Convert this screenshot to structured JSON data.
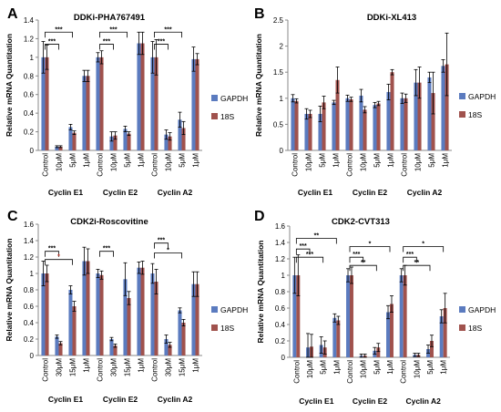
{
  "colors": {
    "gapdh": "#5b7bbf",
    "s18": "#a0524d",
    "axis": "#888888",
    "err": "#000000",
    "redstar": "#c0392b"
  },
  "chart_data": [
    {
      "letter": "A",
      "type": "bar",
      "title": "DDKi-PHA767491",
      "ylabel": "Relative mRNA Quantitation",
      "ylim": [
        0,
        1.4
      ],
      "yticks": [
        "0",
        "0.2",
        "0.4",
        "0.6",
        "0.8",
        "1",
        "1.2",
        "1.4"
      ],
      "categories": [
        "Control",
        "10μM",
        "5μM",
        "1μM",
        "Control",
        "10μM",
        "5μM",
        "1μM",
        "Control",
        "10μM",
        "5μM",
        "1μM"
      ],
      "groups": [
        "Cyclin E1",
        "Cyclin E2",
        "Cyclin A2"
      ],
      "series": [
        {
          "name": "GAPDH",
          "values": [
            1.0,
            0.04,
            0.25,
            0.8,
            1.0,
            0.15,
            0.23,
            1.15,
            1.0,
            0.17,
            0.33,
            0.98
          ],
          "errors": [
            0.17,
            0.01,
            0.03,
            0.06,
            0.05,
            0.05,
            0.03,
            0.12,
            0.17,
            0.05,
            0.08,
            0.13
          ]
        },
        {
          "name": "18S",
          "values": [
            1.0,
            0.04,
            0.19,
            0.8,
            1.0,
            0.16,
            0.18,
            1.15,
            1.0,
            0.15,
            0.24,
            0.98
          ],
          "errors": [
            0.13,
            0.01,
            0.02,
            0.06,
            0.07,
            0.04,
            0.02,
            0.12,
            0.19,
            0.04,
            0.07,
            0.06
          ]
        }
      ],
      "annotations": [
        {
          "text": "***",
          "from": 0,
          "to": 1,
          "level": 1.14
        },
        {
          "text": "***",
          "from": 0,
          "to": 2,
          "level": 1.27
        },
        {
          "text": "***",
          "from": 4,
          "to": 5,
          "level": 1.14
        },
        {
          "text": "***",
          "from": 4,
          "to": 6,
          "level": 1.27
        },
        {
          "text": "***",
          "from": 8,
          "to": 9,
          "level": 1.14
        },
        {
          "text": "***",
          "from": 8,
          "to": 10,
          "level": 1.27
        }
      ]
    },
    {
      "letter": "B",
      "type": "bar",
      "title": "DDKi-XL413",
      "ylabel": "Relative mRNA Quantitation",
      "ylim": [
        0,
        2.5
      ],
      "yticks": [
        "0",
        "0.5",
        "1",
        "1.5",
        "2",
        "2.5"
      ],
      "categories": [
        "Control",
        "10μM",
        "5μM",
        "1μM",
        "Control",
        "10μM",
        "5μM",
        "1μM",
        "Control",
        "10μM",
        "5μM",
        "1μM"
      ],
      "groups": [
        "Cyclin E1",
        "Cyclin E2",
        "Cyclin A2"
      ],
      "series": [
        {
          "name": "GAPDH",
          "values": [
            1.0,
            0.7,
            0.7,
            0.92,
            1.0,
            1.05,
            0.87,
            1.12,
            1.0,
            1.3,
            1.4,
            1.62
          ],
          "errors": [
            0.07,
            0.1,
            0.15,
            0.04,
            0.06,
            0.12,
            0.05,
            0.15,
            0.1,
            0.25,
            0.1,
            0.12
          ]
        },
        {
          "name": "18S",
          "values": [
            0.95,
            0.7,
            0.92,
            1.35,
            0.98,
            0.78,
            0.9,
            1.5,
            1.0,
            1.3,
            1.1,
            1.65
          ],
          "errors": [
            0.04,
            0.07,
            0.12,
            0.25,
            0.04,
            0.06,
            0.04,
            0.05,
            0.08,
            0.3,
            0.4,
            0.6
          ]
        }
      ],
      "annotations": []
    },
    {
      "letter": "C",
      "type": "bar",
      "title": "CDK2i-Roscovitine",
      "ylabel": "Relative mRNA Quantitation",
      "ylim": [
        0,
        1.6
      ],
      "yticks": [
        "0",
        "0.2",
        "0.4",
        "0.6",
        "0.8",
        "1",
        "1.2",
        "1.4",
        "1.6"
      ],
      "categories": [
        "Control",
        "30μM",
        "15μM",
        "1μM",
        "Control",
        "30μM",
        "15μM",
        "1μM",
        "Control",
        "30μM",
        "15μM",
        "1μM"
      ],
      "groups": [
        "Cyclin E1",
        "Cyclin E2",
        "Cyclin A2"
      ],
      "series": [
        {
          "name": "GAPDH",
          "values": [
            1.0,
            0.23,
            0.8,
            1.15,
            1.0,
            0.2,
            0.93,
            1.07,
            1.0,
            0.2,
            0.55,
            0.87
          ],
          "errors": [
            0.15,
            0.02,
            0.05,
            0.17,
            0.05,
            0.02,
            0.2,
            0.07,
            0.12,
            0.05,
            0.03,
            0.15
          ]
        },
        {
          "name": "18S",
          "values": [
            1.0,
            0.15,
            0.6,
            1.15,
            0.98,
            0.12,
            0.7,
            1.07,
            0.9,
            0.13,
            0.4,
            0.87
          ],
          "errors": [
            0.1,
            0.02,
            0.06,
            0.15,
            0.05,
            0.02,
            0.08,
            0.08,
            0.15,
            0.03,
            0.04,
            0.15
          ]
        }
      ],
      "annotations": [
        {
          "text": "***",
          "from": 0,
          "to": 1,
          "level": 1.27,
          "color": "black"
        },
        {
          "text": "*",
          "from": 0,
          "to": 2,
          "level": 1.17,
          "color": "red"
        },
        {
          "text": "***",
          "from": 4,
          "to": 5,
          "level": 1.27,
          "color": "black"
        },
        {
          "text": "***",
          "from": 8,
          "to": 9,
          "level": 1.37,
          "color": "black"
        },
        {
          "text": "*",
          "from": 8,
          "to": 10,
          "level": 1.25,
          "color": "black"
        }
      ]
    },
    {
      "letter": "D",
      "type": "bar",
      "title": "CDK2-CVT313",
      "ylabel": "Relative mRNA Quantitation",
      "ylim": [
        0,
        1.6
      ],
      "yticks": [
        "0",
        "0.2",
        "0.4",
        "0.6",
        "0.8",
        "1",
        "1.2",
        "1.4",
        "1.6"
      ],
      "categories": [
        "Control",
        "10μM",
        "5μM",
        "1μM",
        "Control",
        "10μM",
        "5μM",
        "1μM",
        "Control",
        "10μM",
        "5μM",
        "1μM"
      ],
      "groups": [
        "Cyclin E1",
        "Cyclin E2",
        "Cyclin A2"
      ],
      "series": [
        {
          "name": "GAPDH",
          "values": [
            1.0,
            0.12,
            0.15,
            0.48,
            1.0,
            0.02,
            0.08,
            0.55,
            1.0,
            0.03,
            0.1,
            0.5
          ],
          "errors": [
            0.22,
            0.17,
            0.1,
            0.05,
            0.08,
            0.02,
            0.04,
            0.08,
            0.08,
            0.02,
            0.05,
            0.08
          ]
        },
        {
          "name": "18S",
          "values": [
            1.0,
            0.13,
            0.12,
            0.45,
            1.0,
            0.02,
            0.12,
            0.65,
            1.0,
            0.03,
            0.2,
            0.6
          ],
          "errors": [
            0.25,
            0.15,
            0.08,
            0.05,
            0.1,
            0.02,
            0.05,
            0.1,
            0.12,
            0.02,
            0.07,
            0.18
          ]
        }
      ],
      "annotations": [
        {
          "text": "***",
          "from": 0,
          "to": 1,
          "level": 1.32
        },
        {
          "text": "***",
          "from": 0,
          "to": 2,
          "level": 1.22
        },
        {
          "text": "**",
          "from": 0,
          "to": 3,
          "level": 1.45
        },
        {
          "text": "***",
          "from": 4,
          "to": 5,
          "level": 1.22
        },
        {
          "text": "**",
          "from": 4,
          "to": 6,
          "level": 1.12
        },
        {
          "text": "*",
          "from": 4,
          "to": 7,
          "level": 1.35
        },
        {
          "text": "***",
          "from": 8,
          "to": 9,
          "level": 1.22
        },
        {
          "text": "**",
          "from": 8,
          "to": 10,
          "level": 1.12
        },
        {
          "text": "*",
          "from": 8,
          "to": 11,
          "level": 1.35
        }
      ]
    }
  ]
}
